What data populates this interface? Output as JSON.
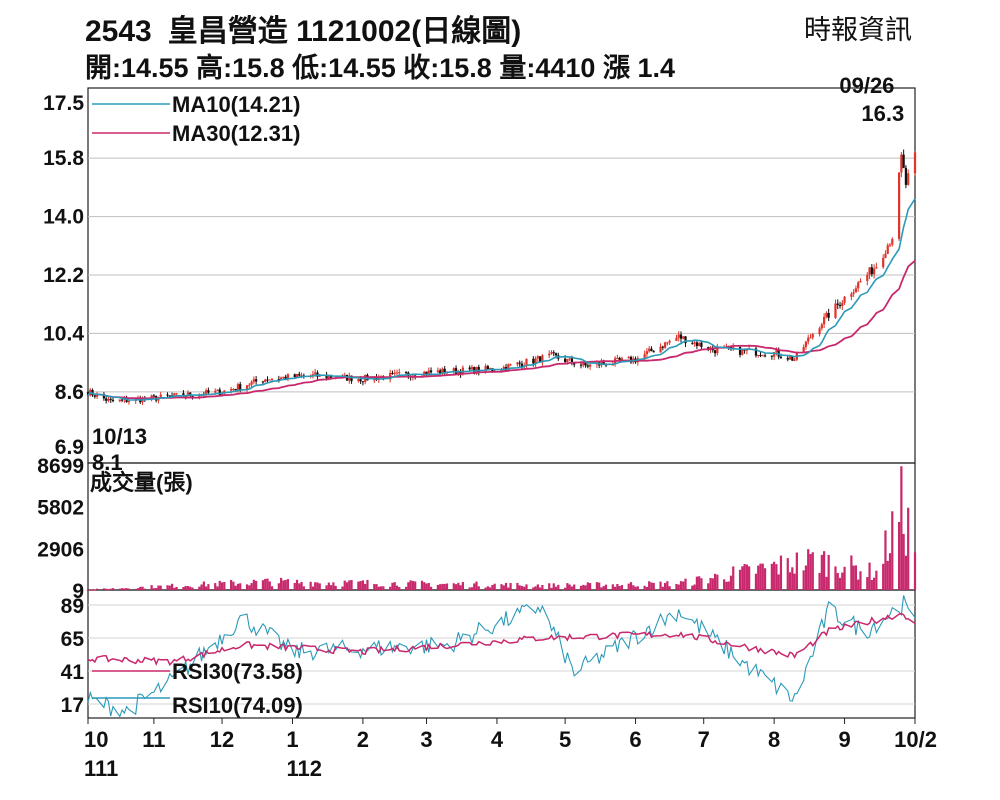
{
  "header": {
    "stock_code": "2543",
    "title": "皇昌營造 1121002(日線圖)",
    "source": "時報資訊",
    "quote": {
      "open_label": "開:",
      "open": "14.55",
      "high_label": "高:",
      "high": "15.8",
      "low_label": "低:",
      "low": "14.55",
      "close_label": "收:",
      "close": "15.8",
      "volume_label": "量:",
      "volume": "4410",
      "change_label": "漲",
      "change": "1.4"
    }
  },
  "chart_data": [
    {
      "type": "candlestick",
      "title": "",
      "x_range": [
        "2022-10-03",
        "2023-10-02"
      ],
      "ylim": [
        6.9,
        17.5
      ],
      "yticks": [
        "17.5",
        "15.8",
        "14.0",
        "12.2",
        "10.4",
        "8.6",
        "6.9"
      ],
      "grid": true,
      "legend": [
        {
          "name": "MA10(14.21)",
          "color": "#2a9ab8"
        },
        {
          "name": "MA30(12.31)",
          "color": "#c8286c"
        }
      ],
      "ma10_last": 14.21,
      "ma30_last": 12.31,
      "up_color": "#e0342a",
      "down_color": "#111111",
      "annotations": [
        {
          "date": "2023-09-26",
          "text_top": "09/26",
          "text_bottom": "16.3",
          "kind": "high"
        },
        {
          "date": "2022-10-13",
          "text_top": "10/13",
          "text_bottom": "8.1",
          "kind": "low"
        }
      ],
      "approx_close_path": [
        [
          "2022-10-03",
          8.6
        ],
        [
          "2022-10-13",
          8.3
        ],
        [
          "2022-10-31",
          8.4
        ],
        [
          "2022-11-15",
          8.5
        ],
        [
          "2022-12-01",
          8.6
        ],
        [
          "2022-12-20",
          9.0
        ],
        [
          "2023-01-10",
          9.1
        ],
        [
          "2023-02-01",
          9.0
        ],
        [
          "2023-03-01",
          9.2
        ],
        [
          "2023-04-01",
          9.3
        ],
        [
          "2023-04-25",
          9.7
        ],
        [
          "2023-05-10",
          9.4
        ],
        [
          "2023-06-01",
          9.6
        ],
        [
          "2023-06-20",
          10.3
        ],
        [
          "2023-07-05",
          9.9
        ],
        [
          "2023-08-01",
          9.8
        ],
        [
          "2023-08-10",
          9.6
        ],
        [
          "2023-08-20",
          10.6
        ],
        [
          "2023-09-01",
          11.5
        ],
        [
          "2023-09-15",
          12.5
        ],
        [
          "2023-09-22",
          13.4
        ],
        [
          "2023-09-26",
          15.8
        ],
        [
          "2023-09-28",
          15.0
        ],
        [
          "2023-10-02",
          15.8
        ]
      ]
    },
    {
      "type": "bar",
      "title": "成交量(張)",
      "yticks": [
        "8699",
        "5802",
        "2906",
        "9"
      ],
      "ylim": [
        9,
        8699
      ],
      "bar_color": "#c8286c",
      "approx_volume_path": [
        [
          "2022-10-03",
          60
        ],
        [
          "2022-12-20",
          900
        ],
        [
          "2023-04-25",
          500
        ],
        [
          "2023-06-20",
          700
        ],
        [
          "2023-08-20",
          3300
        ],
        [
          "2023-09-15",
          1800
        ],
        [
          "2023-09-26",
          8699
        ],
        [
          "2023-10-02",
          4410
        ]
      ]
    },
    {
      "type": "line",
      "ylim": [
        5,
        95
      ],
      "yticks": [
        "89",
        "65",
        "41",
        "17"
      ],
      "legend": [
        {
          "name": "RSI30(73.58)",
          "color": "#c8286c"
        },
        {
          "name": "RSI10(74.09)",
          "color": "#2a9ab8"
        }
      ],
      "rsi30_last": 73.58,
      "rsi10_last": 74.09,
      "approx_rsi10_path": [
        [
          "2022-10-03",
          20
        ],
        [
          "2022-10-20",
          12
        ],
        [
          "2022-11-10",
          35
        ],
        [
          "2022-12-10",
          80
        ],
        [
          "2023-01-01",
          55
        ],
        [
          "2023-03-10",
          60
        ],
        [
          "2023-04-20",
          88
        ],
        [
          "2023-05-05",
          40
        ],
        [
          "2023-06-20",
          85
        ],
        [
          "2023-07-20",
          45
        ],
        [
          "2023-08-10",
          20
        ],
        [
          "2023-08-25",
          85
        ],
        [
          "2023-09-10",
          70
        ],
        [
          "2023-09-27",
          90
        ],
        [
          "2023-10-02",
          74
        ]
      ],
      "approx_rsi30_path": [
        [
          "2022-10-03",
          50
        ],
        [
          "2022-11-10",
          48
        ],
        [
          "2022-12-10",
          60
        ],
        [
          "2023-02-01",
          55
        ],
        [
          "2023-04-20",
          65
        ],
        [
          "2023-06-20",
          68
        ],
        [
          "2023-08-10",
          52
        ],
        [
          "2023-08-25",
          70
        ],
        [
          "2023-09-27",
          83
        ],
        [
          "2023-10-02",
          74
        ]
      ]
    }
  ],
  "x_axis": {
    "month_labels": [
      {
        "label": "10",
        "date": "2022-10-03"
      },
      {
        "label": "11",
        "date": "2022-11-01"
      },
      {
        "label": "12",
        "date": "2022-12-01"
      },
      {
        "label": "1",
        "date": "2023-01-01"
      },
      {
        "label": "2",
        "date": "2023-02-01"
      },
      {
        "label": "3",
        "date": "2023-03-01"
      },
      {
        "label": "4",
        "date": "2023-04-01"
      },
      {
        "label": "5",
        "date": "2023-05-01"
      },
      {
        "label": "6",
        "date": "2023-06-01"
      },
      {
        "label": "7",
        "date": "2023-07-01"
      },
      {
        "label": "8",
        "date": "2023-08-01"
      },
      {
        "label": "9",
        "date": "2023-09-01"
      },
      {
        "label": "10/2",
        "date": "2023-10-02"
      }
    ],
    "year_labels": [
      {
        "label": "111",
        "date": "2022-10-03"
      },
      {
        "label": "112",
        "date": "2023-01-01"
      }
    ]
  }
}
